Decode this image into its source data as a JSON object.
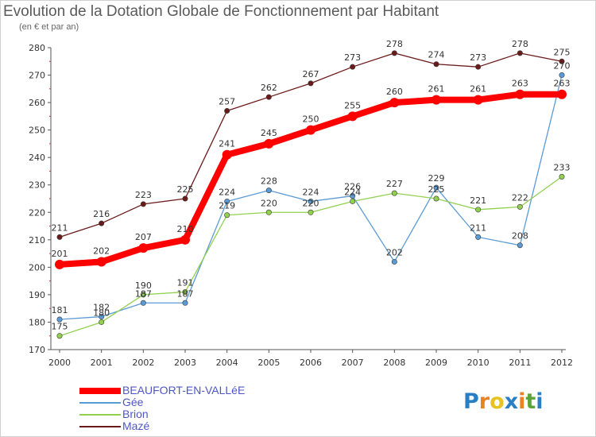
{
  "title": "Evolution de la Dotation Globale de Fonctionnement par Habitant",
  "subtitle": "(en € et par an)",
  "logo": {
    "text": "Proxiti",
    "letters": [
      "P",
      "r",
      "o",
      "x",
      "i",
      "t",
      "i"
    ],
    "colors": [
      "#2a7fc4",
      "#e8831f",
      "#e8c21f",
      "#2a7fc4",
      "#e8831f",
      "#5aa43a",
      "#2a7fc4"
    ]
  },
  "chart_data": {
    "type": "line",
    "title": "Evolution de la Dotation Globale de Fonctionnement par Habitant",
    "subtitle": "(en € et par an)",
    "xlabel": "",
    "ylabel": "",
    "ylim": [
      170,
      280
    ],
    "yticks": [
      170,
      180,
      190,
      200,
      210,
      220,
      230,
      240,
      250,
      260,
      270,
      280
    ],
    "x": [
      "2000",
      "2001",
      "2002",
      "2003",
      "2004",
      "2005",
      "2006",
      "2007",
      "2008",
      "2009",
      "2010",
      "2011",
      "2012"
    ],
    "grid": false,
    "legend_position": "bottom-left",
    "series": [
      {
        "name": "BEAUFORT-EN-VALLéE",
        "color": "#ff0000",
        "values": [
          201,
          202,
          207,
          210,
          241,
          245,
          250,
          255,
          260,
          261,
          261,
          263,
          263
        ]
      },
      {
        "name": "Gée",
        "color": "#5b9bd5",
        "values": [
          181,
          182,
          187,
          187,
          224,
          228,
          224,
          226,
          202,
          229,
          211,
          208,
          270
        ]
      },
      {
        "name": "Brion",
        "color": "#92d050",
        "values": [
          175,
          180,
          190,
          191,
          219,
          220,
          220,
          224,
          227,
          225,
          221,
          222,
          233
        ]
      },
      {
        "name": "Mazé",
        "color": "#6b1a1a",
        "values": [
          211,
          216,
          223,
          225,
          257,
          262,
          267,
          273,
          278,
          274,
          273,
          278,
          275
        ]
      }
    ]
  }
}
